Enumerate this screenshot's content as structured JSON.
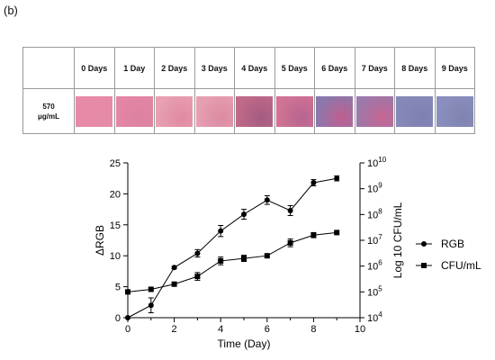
{
  "panel_label": "(b)",
  "table": {
    "row_label_line1": "570",
    "row_label_line2": "μg/mL",
    "days": [
      "0 Days",
      "1 Day",
      "2 Days",
      "3 Days",
      "4 Days",
      "5 Days",
      "6 Days",
      "7 Days",
      "8 Days",
      "9 Days"
    ],
    "swatch_colors": [
      [
        "#e88aa7",
        "#e48ba8"
      ],
      [
        "#e386a4",
        "#dc81a0"
      ],
      [
        "#e8a0b2",
        "#e08aa3"
      ],
      [
        "#e69fb1",
        "#dc8aa2"
      ],
      [
        "#c06a89",
        "#a45b80"
      ],
      [
        "#d27395",
        "#b76490"
      ],
      [
        "#8a78ad",
        "#c05f8e"
      ],
      [
        "#9b79aa",
        "#c66591"
      ],
      [
        "#8689b8",
        "#7e80b2"
      ],
      [
        "#8a8fbd",
        "#8083b2"
      ]
    ]
  },
  "chart_data": {
    "type": "line",
    "xlabel": "Time (Day)",
    "ylabel": "ΔRGB",
    "y2label": "Log 10 CFU/mL",
    "xlim": [
      0,
      10
    ],
    "ylim": [
      0,
      25
    ],
    "y2lim": [
      4,
      10
    ],
    "x_ticks": [
      "0",
      "2",
      "4",
      "6",
      "8",
      "10"
    ],
    "y_ticks": [
      "0",
      "5",
      "10",
      "15",
      "20",
      "25"
    ],
    "y2_tick_exponents": [
      "4",
      "5",
      "6",
      "7",
      "8",
      "9",
      "10"
    ],
    "y2_tick_base": "10",
    "legend_position": "right",
    "series": [
      {
        "name": "RGB",
        "marker": "circle",
        "axis": "left",
        "x": [
          0,
          1,
          2,
          3,
          4,
          5,
          6,
          7,
          8,
          9
        ],
        "y": [
          0,
          2,
          8.1,
          10.4,
          14,
          16.7,
          19,
          17.3,
          21.8,
          22.5
        ],
        "err": [
          0,
          1.2,
          0.2,
          0.6,
          0.9,
          0.8,
          0.7,
          0.8,
          0.5,
          0.4
        ]
      },
      {
        "name": "CFU/mL",
        "marker": "square",
        "axis": "right",
        "x": [
          0,
          1,
          2,
          3,
          4,
          5,
          6,
          7,
          8,
          9
        ],
        "y": [
          5.0,
          5.1,
          5.3,
          5.6,
          6.2,
          6.3,
          6.4,
          6.9,
          7.2,
          7.3
        ],
        "err": [
          0,
          0,
          0,
          0.15,
          0.15,
          0.12,
          0,
          0.15,
          0.1,
          0
        ]
      }
    ]
  }
}
